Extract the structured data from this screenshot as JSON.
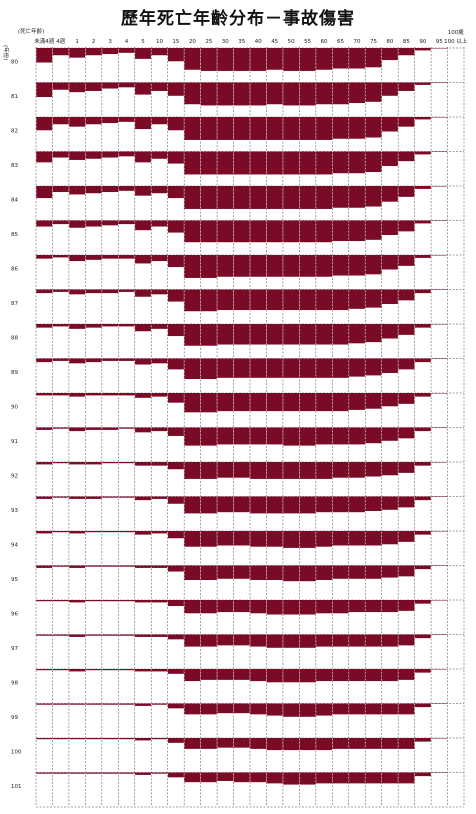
{
  "title": "歷年死亡年齡分布－事故傷害",
  "chart_data": {
    "type": "heatmap",
    "title": "歷年死亡年齡分布－事故傷害",
    "x_axis_title": "(死亡年齡)",
    "y_axis_title": "(年份)",
    "categories": [
      "未滿4週",
      "4週",
      "1",
      "2",
      "3",
      "4",
      "5",
      "10",
      "15",
      "20",
      "25",
      "30",
      "35",
      "40",
      "45",
      "50",
      "55",
      "60",
      "65",
      "70",
      "75",
      "80",
      "85",
      "90",
      "95",
      "100 以上"
    ],
    "top_axis_labels": [
      "未滿4週",
      "4週",
      "1",
      "2",
      "3",
      "4",
      "5",
      "10",
      "15",
      "20",
      "25",
      "30",
      "35",
      "40",
      "45",
      "50",
      "55",
      "60",
      "65",
      "70",
      "75",
      "80",
      "85",
      "90",
      "95",
      "100歲"
    ],
    "years": [
      "80",
      "81",
      "82",
      "83",
      "84",
      "85",
      "86",
      "87",
      "88",
      "89",
      "90",
      "91",
      "92",
      "93",
      "94",
      "95",
      "96",
      "97",
      "98",
      "99",
      "100",
      "101"
    ],
    "units": "relative band height (0-1)",
    "series": [
      {
        "year": "80",
        "values": [
          0.6,
          0.3,
          0.4,
          0.3,
          0.25,
          0.2,
          0.45,
          0.3,
          0.55,
          0.9,
          0.95,
          0.95,
          0.95,
          0.95,
          0.9,
          0.95,
          0.95,
          0.9,
          0.85,
          0.85,
          0.8,
          0.5,
          0.3,
          0.1,
          0.02,
          0.0
        ]
      },
      {
        "year": "81",
        "values": [
          0.6,
          0.3,
          0.4,
          0.35,
          0.25,
          0.2,
          0.5,
          0.35,
          0.55,
          0.9,
          0.95,
          0.95,
          0.95,
          0.95,
          0.9,
          0.95,
          0.95,
          0.9,
          0.9,
          0.85,
          0.8,
          0.55,
          0.35,
          0.1,
          0.02,
          0.0
        ]
      },
      {
        "year": "82",
        "values": [
          0.55,
          0.3,
          0.4,
          0.3,
          0.25,
          0.2,
          0.5,
          0.3,
          0.55,
          0.95,
          0.95,
          0.95,
          0.95,
          0.95,
          0.95,
          0.95,
          0.95,
          0.95,
          0.9,
          0.9,
          0.85,
          0.6,
          0.4,
          0.1,
          0.02,
          0.0
        ]
      },
      {
        "year": "83",
        "values": [
          0.45,
          0.25,
          0.35,
          0.3,
          0.25,
          0.2,
          0.45,
          0.3,
          0.5,
          0.95,
          0.95,
          0.95,
          0.95,
          0.95,
          0.95,
          0.95,
          0.95,
          0.95,
          0.9,
          0.9,
          0.85,
          0.6,
          0.4,
          0.12,
          0.02,
          0.0
        ]
      },
      {
        "year": "84",
        "values": [
          0.5,
          0.25,
          0.35,
          0.3,
          0.25,
          0.2,
          0.4,
          0.3,
          0.5,
          0.95,
          0.95,
          0.95,
          0.95,
          0.95,
          0.95,
          0.95,
          0.95,
          0.95,
          0.9,
          0.9,
          0.85,
          0.65,
          0.45,
          0.12,
          0.02,
          0.0
        ]
      },
      {
        "year": "85",
        "values": [
          0.25,
          0.15,
          0.3,
          0.25,
          0.2,
          0.15,
          0.4,
          0.25,
          0.5,
          0.9,
          0.9,
          0.9,
          0.9,
          0.9,
          0.9,
          0.9,
          0.9,
          0.9,
          0.85,
          0.85,
          0.8,
          0.6,
          0.45,
          0.12,
          0.02,
          0.0
        ]
      },
      {
        "year": "86",
        "values": [
          0.15,
          0.1,
          0.25,
          0.2,
          0.15,
          0.15,
          0.35,
          0.25,
          0.5,
          0.95,
          0.95,
          0.9,
          0.9,
          0.9,
          0.9,
          0.9,
          0.9,
          0.9,
          0.85,
          0.85,
          0.8,
          0.6,
          0.45,
          0.12,
          0.02,
          0.0
        ]
      },
      {
        "year": "87",
        "values": [
          0.15,
          0.1,
          0.2,
          0.15,
          0.15,
          0.1,
          0.3,
          0.2,
          0.5,
          0.9,
          0.9,
          0.85,
          0.85,
          0.85,
          0.85,
          0.85,
          0.85,
          0.85,
          0.85,
          0.8,
          0.75,
          0.6,
          0.45,
          0.15,
          0.02,
          0.0
        ]
      },
      {
        "year": "88",
        "values": [
          0.15,
          0.1,
          0.2,
          0.15,
          0.1,
          0.1,
          0.3,
          0.2,
          0.5,
          0.9,
          0.9,
          0.85,
          0.85,
          0.85,
          0.85,
          0.85,
          0.85,
          0.85,
          0.85,
          0.8,
          0.75,
          0.6,
          0.45,
          0.15,
          0.02,
          0.0
        ]
      },
      {
        "year": "89",
        "values": [
          0.15,
          0.1,
          0.2,
          0.15,
          0.1,
          0.1,
          0.25,
          0.2,
          0.45,
          0.85,
          0.85,
          0.8,
          0.8,
          0.8,
          0.8,
          0.8,
          0.8,
          0.8,
          0.8,
          0.75,
          0.7,
          0.6,
          0.45,
          0.15,
          0.02,
          0.0
        ]
      },
      {
        "year": "90",
        "values": [
          0.1,
          0.1,
          0.15,
          0.1,
          0.1,
          0.1,
          0.2,
          0.15,
          0.4,
          0.8,
          0.8,
          0.75,
          0.75,
          0.75,
          0.75,
          0.75,
          0.75,
          0.75,
          0.75,
          0.7,
          0.65,
          0.55,
          0.45,
          0.15,
          0.02,
          0.0
        ]
      },
      {
        "year": "91",
        "values": [
          0.1,
          0.05,
          0.15,
          0.1,
          0.1,
          0.05,
          0.2,
          0.15,
          0.35,
          0.75,
          0.75,
          0.7,
          0.7,
          0.7,
          0.7,
          0.75,
          0.75,
          0.7,
          0.7,
          0.7,
          0.65,
          0.55,
          0.45,
          0.15,
          0.02,
          0.0
        ]
      },
      {
        "year": "92",
        "values": [
          0.1,
          0.05,
          0.1,
          0.1,
          0.05,
          0.05,
          0.15,
          0.15,
          0.3,
          0.7,
          0.7,
          0.65,
          0.65,
          0.7,
          0.7,
          0.7,
          0.7,
          0.7,
          0.65,
          0.65,
          0.6,
          0.55,
          0.45,
          0.15,
          0.02,
          0.0
        ]
      },
      {
        "year": "93",
        "values": [
          0.1,
          0.05,
          0.1,
          0.1,
          0.05,
          0.05,
          0.15,
          0.1,
          0.3,
          0.7,
          0.7,
          0.65,
          0.65,
          0.7,
          0.7,
          0.7,
          0.7,
          0.65,
          0.65,
          0.65,
          0.6,
          0.55,
          0.45,
          0.15,
          0.02,
          0.0
        ]
      },
      {
        "year": "94",
        "values": [
          0.1,
          0.05,
          0.1,
          0.05,
          0.05,
          0.05,
          0.15,
          0.1,
          0.3,
          0.65,
          0.65,
          0.6,
          0.6,
          0.65,
          0.65,
          0.7,
          0.7,
          0.65,
          0.6,
          0.6,
          0.6,
          0.55,
          0.45,
          0.15,
          0.02,
          0.0
        ]
      },
      {
        "year": "95",
        "values": [
          0.1,
          0.05,
          0.1,
          0.05,
          0.05,
          0.05,
          0.1,
          0.1,
          0.25,
          0.6,
          0.6,
          0.55,
          0.55,
          0.6,
          0.6,
          0.65,
          0.65,
          0.6,
          0.55,
          0.55,
          0.55,
          0.5,
          0.45,
          0.15,
          0.02,
          0.0
        ]
      },
      {
        "year": "96",
        "values": [
          0.05,
          0.05,
          0.1,
          0.05,
          0.05,
          0.05,
          0.1,
          0.1,
          0.25,
          0.55,
          0.55,
          0.5,
          0.5,
          0.55,
          0.6,
          0.6,
          0.6,
          0.55,
          0.55,
          0.5,
          0.5,
          0.5,
          0.45,
          0.15,
          0.02,
          0.0
        ]
      },
      {
        "year": "97",
        "values": [
          0.05,
          0.05,
          0.1,
          0.05,
          0.05,
          0.05,
          0.1,
          0.1,
          0.2,
          0.5,
          0.5,
          0.45,
          0.45,
          0.5,
          0.55,
          0.55,
          0.55,
          0.5,
          0.5,
          0.5,
          0.5,
          0.5,
          0.45,
          0.15,
          0.02,
          0.0
        ]
      },
      {
        "year": "98",
        "values": [
          0.05,
          0.05,
          0.1,
          0.05,
          0.05,
          0.05,
          0.1,
          0.1,
          0.2,
          0.5,
          0.45,
          0.45,
          0.45,
          0.5,
          0.55,
          0.55,
          0.55,
          0.5,
          0.5,
          0.5,
          0.5,
          0.5,
          0.45,
          0.15,
          0.02,
          0.0
        ]
      },
      {
        "year": "99",
        "values": [
          0.05,
          0.05,
          0.05,
          0.05,
          0.05,
          0.05,
          0.1,
          0.05,
          0.2,
          0.45,
          0.45,
          0.4,
          0.4,
          0.45,
          0.5,
          0.55,
          0.55,
          0.5,
          0.45,
          0.45,
          0.45,
          0.45,
          0.45,
          0.15,
          0.02,
          0.0
        ]
      },
      {
        "year": "100",
        "values": [
          0.05,
          0.05,
          0.05,
          0.05,
          0.05,
          0.05,
          0.1,
          0.05,
          0.2,
          0.45,
          0.45,
          0.4,
          0.4,
          0.45,
          0.5,
          0.5,
          0.5,
          0.5,
          0.45,
          0.45,
          0.45,
          0.45,
          0.45,
          0.15,
          0.02,
          0.0
        ]
      },
      {
        "year": "101",
        "values": [
          0.05,
          0.05,
          0.05,
          0.05,
          0.05,
          0.05,
          0.1,
          0.05,
          0.2,
          0.4,
          0.4,
          0.35,
          0.4,
          0.4,
          0.45,
          0.5,
          0.5,
          0.45,
          0.45,
          0.45,
          0.45,
          0.45,
          0.45,
          0.15,
          0.02,
          0.0
        ]
      }
    ],
    "grid": true,
    "color": "#7a0a26"
  },
  "colors": {
    "band": "#7a0a26",
    "grid": "#444444",
    "background": "#ffffff"
  }
}
